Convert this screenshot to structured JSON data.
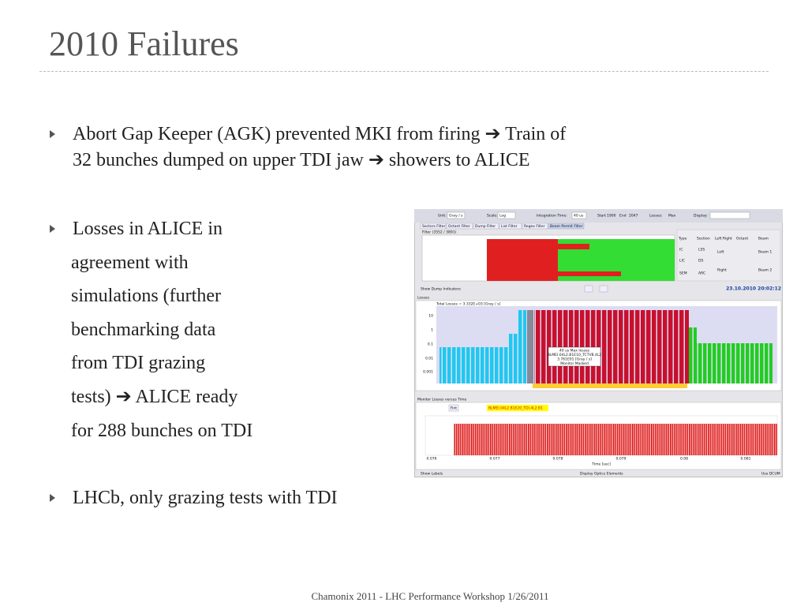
{
  "header": {
    "title": "2010 Failures"
  },
  "bullets": [
    {
      "lines": [
        "Abort Gap Keeper (AGK) prevented MKI from firing ➔ Train of",
        "32 bunches dumped on upper TDI jaw ➔ showers to ALICE"
      ]
    },
    {
      "lines": [
        "Losses in ALICE in",
        "agreement with",
        "simulations (further",
        "benchmarking data",
        "from TDI grazing",
        "tests) ➔  ALICE ready",
        "for 288 bunches on TDI"
      ]
    },
    {
      "lines": [
        "LHCb, only grazing tests with TDI"
      ]
    }
  ],
  "screenshot": {
    "tabs": [
      "Sectors Filter",
      "Octant Filter",
      "Dump Filter",
      "List Filter",
      "Regex Filter",
      "Beam Permit Filter"
    ],
    "toolbar": [
      "Unit:",
      "Gray / s",
      "Scale:",
      "Log",
      "Integration Time:",
      "40 us",
      "Start",
      "1900",
      "End",
      "2047",
      "Losses:",
      "Max",
      "Display:"
    ],
    "filter_title": "Filter (3552 / 3891)",
    "panel_heads": [
      "Type",
      "Section",
      "Left Right",
      "Octant",
      "Beam"
    ],
    "checkboxes": [
      "IC",
      "LIC",
      "SEM",
      "LSS",
      "DS",
      "ARC",
      "Left",
      "Right",
      "Beam 1",
      "Beam 2"
    ],
    "dump_indicators": "Show Dump Indicators",
    "timestamp": "23.10.2010 20:02:12",
    "losses_title": "Losses",
    "total_losses": "Total Losses = 3.332E+03 [Gray / s]",
    "y_ticks": [
      "10",
      "1",
      "0.1",
      "0.01",
      "0.001"
    ],
    "info_box": [
      "40 us Max losses",
      "BLMEI.04L2.B1E10_TCTVB.4L2",
      "3.761E01 [Gray / s]",
      "Monitor Masked"
    ],
    "time_title": "Monitor Losses versus Time",
    "time_button": "Fint",
    "monitor_name": "BLMEI.04L2.B1E20_TDI.4L2.B1",
    "time_x_ticks": [
      "0.076",
      "0.077",
      "0.078",
      "0.079",
      "0.08",
      "0.081"
    ],
    "time_x_label": "Time [sec]",
    "bottom_options": [
      "Show Labels",
      "Display Optics Elements",
      "Use DCUM"
    ]
  },
  "footer": "Chamonix 2011 - LHC Performance Workshop 1/26/2011"
}
